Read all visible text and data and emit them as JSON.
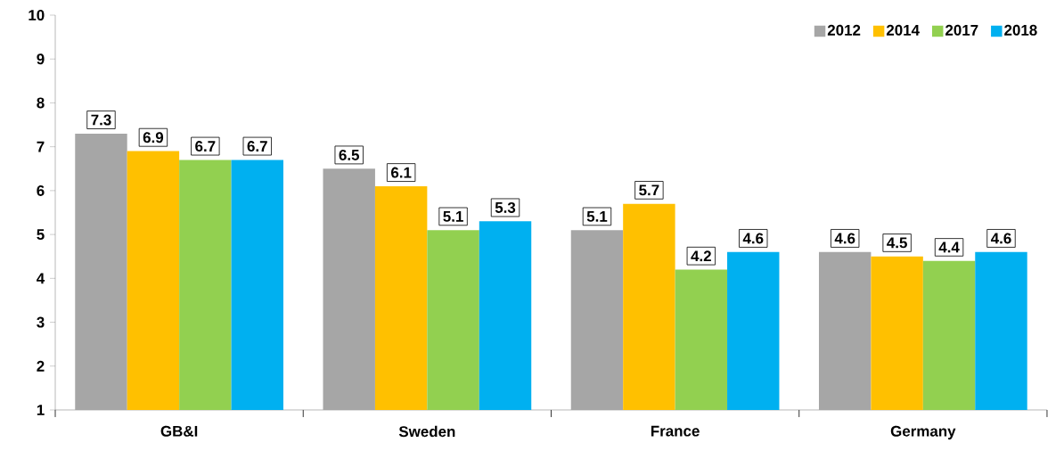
{
  "chart_data": {
    "type": "bar",
    "categories": [
      "GB&I",
      "Sweden",
      "France",
      "Germany"
    ],
    "series": [
      {
        "name": "2012",
        "color": "#a6a6a6",
        "values": [
          7.3,
          6.5,
          5.1,
          4.6
        ]
      },
      {
        "name": "2014",
        "color": "#ffc000",
        "values": [
          6.9,
          6.1,
          5.7,
          4.5
        ]
      },
      {
        "name": "2017",
        "color": "#92d050",
        "values": [
          6.7,
          5.1,
          4.2,
          4.4
        ]
      },
      {
        "name": "2018",
        "color": "#00b0f0",
        "values": [
          6.7,
          5.3,
          4.6,
          4.6
        ]
      }
    ],
    "ylim": [
      1,
      10
    ],
    "yticks": [
      1,
      2,
      3,
      4,
      5,
      6,
      7,
      8,
      9,
      10
    ],
    "data_labels": true,
    "legend": "top right",
    "grid": false
  }
}
